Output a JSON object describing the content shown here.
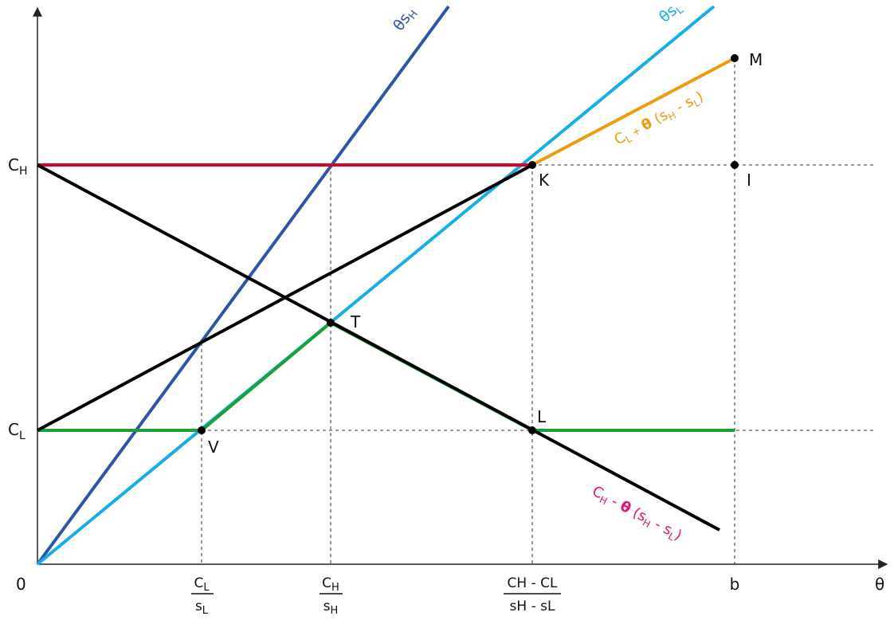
{
  "axes": {
    "origin_label": "0",
    "x_axis_label": "θ",
    "y_ticks": [
      {
        "key": "CH",
        "base": "C",
        "sub": "H"
      },
      {
        "key": "CL",
        "base": "C",
        "sub": "L"
      }
    ],
    "x_ticks": [
      {
        "key": "CL_over_sL",
        "numerator": {
          "base": "C",
          "sub": "L"
        },
        "denominator": {
          "base": "s",
          "sub": "L"
        }
      },
      {
        "key": "CH_over_sH",
        "numerator": {
          "base": "C",
          "sub": "H"
        },
        "denominator": {
          "base": "s",
          "sub": "H"
        }
      },
      {
        "key": "K_theta",
        "numerator": "CH - CL",
        "denominator": "sH - sL"
      },
      {
        "key": "b",
        "label": "b"
      }
    ]
  },
  "points": {
    "M": "M",
    "K": "K",
    "I": "I",
    "T": "T",
    "L": "L",
    "V": "V"
  },
  "line_labels": {
    "theta_sH": {
      "theta": "θ",
      "base": "s",
      "sub": "H"
    },
    "theta_sL": {
      "theta": "θ",
      "base": "s",
      "sub": "L"
    },
    "orange": {
      "c": "C",
      "c_sub": "L",
      "plus": " + ",
      "theta": "θ",
      "rest": " (s",
      "s1_sub": "H",
      "minus": " - s",
      "s2_sub": "L",
      "close": ")"
    },
    "pink": {
      "c": "C",
      "c_sub": "H",
      "minus": " - ",
      "theta": "θ",
      "rest": " (s",
      "s1_sub": "H",
      "minus2": " - s",
      "s2_sub": "L",
      "close": ")"
    }
  },
  "colors": {
    "red": "#d90429",
    "black": "#000000",
    "green": "#1e9e3a",
    "light_blue": "#16aee8",
    "dark_blue": "#2e55a5",
    "orange": "#ef9b0f",
    "pink": "#e0157a",
    "dashed": "#333333"
  }
}
